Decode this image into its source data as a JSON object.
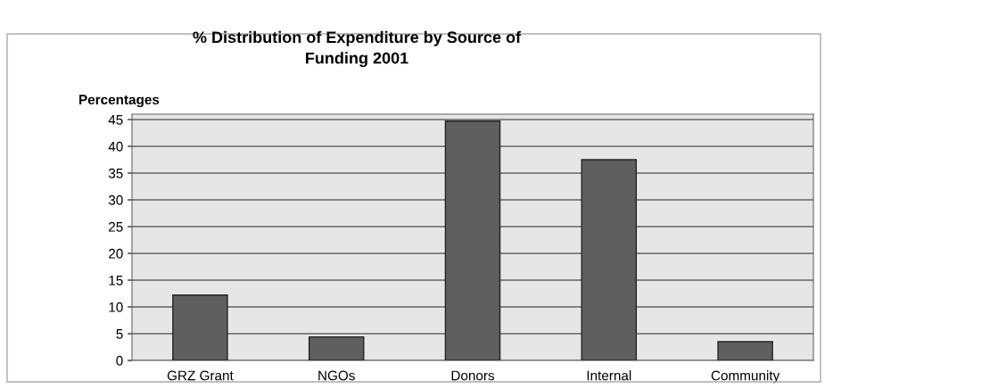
{
  "chart_data": {
    "type": "bar",
    "title": "% Distribution of Expenditure by Source of\nFunding 2001",
    "ylabel": "Percentages",
    "categories": [
      "GRZ Grant",
      "NGOs",
      "Donors",
      "Internal",
      "Community"
    ],
    "values": [
      12.2,
      4.4,
      44.7,
      37.5,
      3.5
    ],
    "color": "#5f5f5f",
    "ylim": [
      0,
      46
    ],
    "yticks": [
      0,
      5,
      10,
      15,
      20,
      25,
      30,
      35,
      40,
      45
    ],
    "grid": "y",
    "legend": false
  }
}
